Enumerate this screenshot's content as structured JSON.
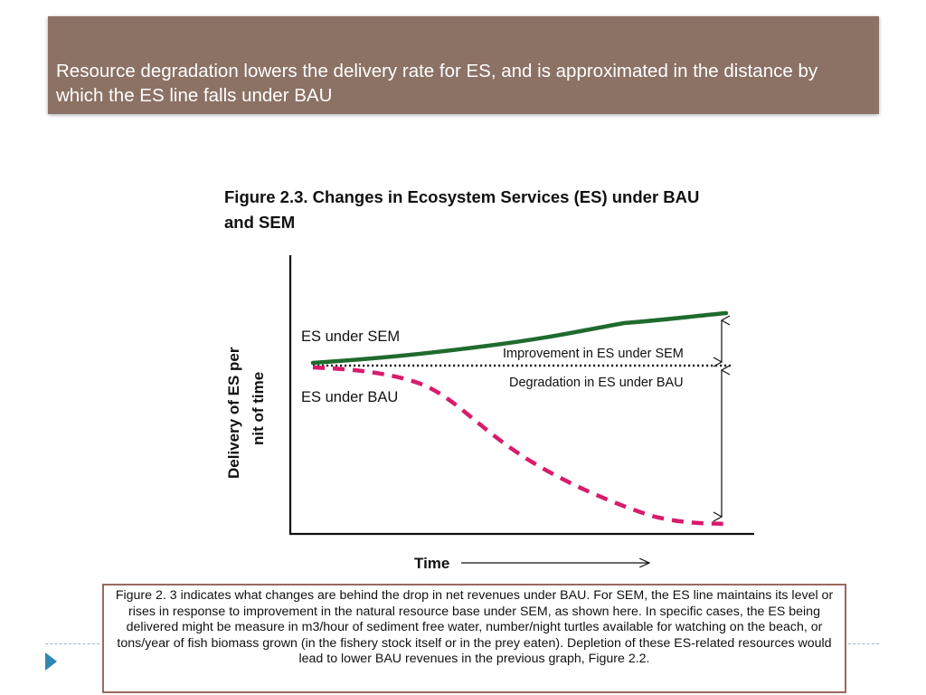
{
  "slide": {
    "title": "Resource degradation lowers the delivery rate for ES, and is approximated in the distance by which the ES line falls  under BAU"
  },
  "figure": {
    "title_line1": "Figure 2.3. Changes in Ecosystem Services (ES) under BAU",
    "title_line2": "and SEM",
    "y_label_line1": "Delivery of  ES per",
    "y_label_line2": "nit of time",
    "x_label": "Time",
    "sem_label": "ES under SEM",
    "bau_label": "ES under BAU",
    "improvement_label": "Improvement in ES under SEM",
    "degradation_label": "Degradation in ES under BAU",
    "colors": {
      "sem": "#1f6b2e",
      "bau": "#d81b6b",
      "baseline": "#222222"
    }
  },
  "caption": {
    "text": "Figure 2. 3 indicates what changes are behind the drop in net revenues under BAU.  For SEM, the ES line maintains its level or rises in response to improvement in the natural resource base under SEM, as shown here. In specific cases, the ES being delivered might be measure in m3/hour of sediment free water, number/night turtles available for watching on the beach, or tons/year of fish biomass grown (in the fishery stock itself or in the prey eaten). Depletion of these ES-related resources would lead to lower BAU revenues in the previous graph, Figure 2.2."
  }
}
